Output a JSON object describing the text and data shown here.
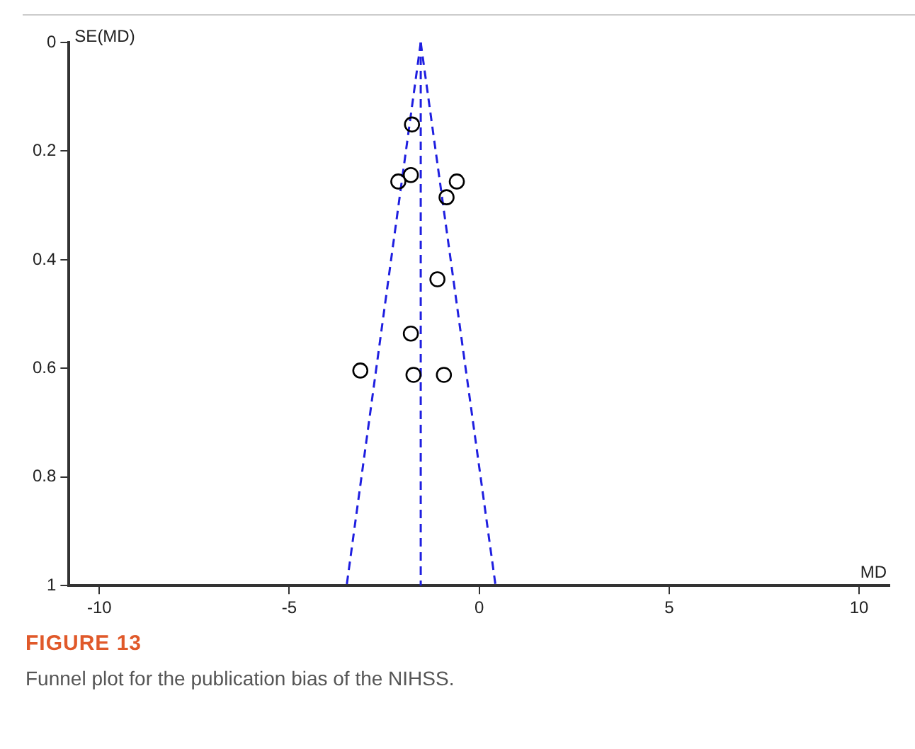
{
  "chart_data": {
    "type": "scatter",
    "xlabel": "MD",
    "ylabel": "SE(MD)",
    "annotations": [
      "FIGURE 13",
      "Funnel plot for the publication bias of the NIHSS."
    ],
    "xlim": [
      -10.8,
      10.8
    ],
    "xticks": [
      -10,
      -5,
      0,
      5,
      10
    ],
    "ylim": [
      1,
      0
    ],
    "yticks": [
      0,
      0.2,
      0.4,
      0.6,
      0.8,
      1
    ],
    "grid": false,
    "legend": false,
    "marker": "circle",
    "series": [
      {
        "type": "scatter",
        "color": "#000000",
        "x": [
          -1.77,
          -1.8,
          -2.13,
          -0.86,
          -0.59,
          -1.1,
          -1.8,
          -3.13,
          -1.73,
          -0.93
        ],
        "values": [
          0.151,
          0.244,
          0.256,
          0.285,
          0.256,
          0.436,
          0.536,
          0.604,
          0.612,
          0.612
        ]
      },
      {
        "type": "line",
        "color": "#1f1fe0",
        "line_style": "dashed",
        "marker": "none",
        "x": [
          -1.54,
          -3.49
        ],
        "values": [
          0,
          1
        ]
      },
      {
        "type": "line",
        "color": "#1f1fe0",
        "line_style": "dashed",
        "marker": "none",
        "x": [
          -1.54,
          0.43
        ],
        "values": [
          0,
          1
        ]
      },
      {
        "type": "line",
        "color": "#1f1fe0",
        "line_style": "dashed",
        "marker": "none",
        "x": [
          -1.54,
          -1.54
        ],
        "values": [
          0,
          1
        ]
      }
    ]
  }
}
